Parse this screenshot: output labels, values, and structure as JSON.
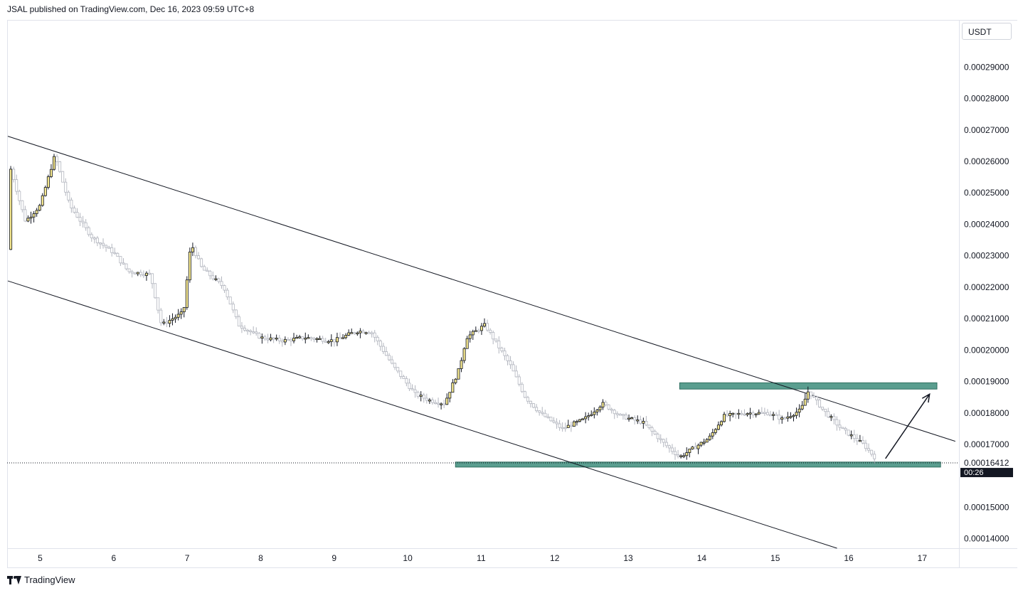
{
  "header": {
    "text": "JSAL published on TradingView.com, Dec 16, 2023 09:59 UTC+8"
  },
  "currency": "USDT",
  "footer": {
    "brand": "TradingView"
  },
  "chart_data": {
    "type": "candlestick",
    "x_ticks": [
      "5",
      "6",
      "7",
      "8",
      "9",
      "10",
      "11",
      "12",
      "13",
      "14",
      "15",
      "16",
      "17"
    ],
    "y_ticks": [
      "0.00029000",
      "0.00028000",
      "0.00027000",
      "0.00026000",
      "0.00025000",
      "0.00024000",
      "0.00023000",
      "0.00022000",
      "0.00021000",
      "0.00020000",
      "0.00019000",
      "0.00018000",
      "0.00017000",
      "0.00015000",
      "0.00014000"
    ],
    "ylim": [
      0.000137,
      0.000305
    ],
    "xlim": [
      4.55,
      17.5
    ],
    "current_price": {
      "value": "0.00016412",
      "countdown": "00:26"
    },
    "colors": {
      "up": "#f7e98f",
      "down": "#ffffff",
      "band": "#5a9e8f",
      "line": "#131722"
    },
    "close_path": [
      [
        4.56,
        0.000232
      ],
      [
        4.6,
        0.000258
      ],
      [
        4.7,
        0.000249
      ],
      [
        4.8,
        0.000241
      ],
      [
        5.0,
        0.000246
      ],
      [
        5.2,
        0.000262
      ],
      [
        5.4,
        0.000246
      ],
      [
        5.7,
        0.000236
      ],
      [
        6.0,
        0.000231
      ],
      [
        6.2,
        0.000225
      ],
      [
        6.5,
        0.000224
      ],
      [
        6.65,
        0.000208
      ],
      [
        6.95,
        0.000212
      ],
      [
        7.05,
        0.000234
      ],
      [
        7.2,
        0.000226
      ],
      [
        7.5,
        0.00022
      ],
      [
        7.7,
        0.000208
      ],
      [
        8.0,
        0.000204
      ],
      [
        8.3,
        0.000203
      ],
      [
        8.6,
        0.000204
      ],
      [
        9.0,
        0.000203
      ],
      [
        9.3,
        0.000206
      ],
      [
        9.5,
        0.000206
      ],
      [
        9.8,
        0.000195
      ],
      [
        10.1,
        0.000186
      ],
      [
        10.3,
        0.000184
      ],
      [
        10.5,
        0.000183
      ],
      [
        10.7,
        0.000194
      ],
      [
        10.8,
        0.000204
      ],
      [
        11.05,
        0.000208
      ],
      [
        11.4,
        0.000195
      ],
      [
        11.6,
        0.000185
      ],
      [
        11.8,
        0.00018
      ],
      [
        12.1,
        0.000175
      ],
      [
        12.4,
        0.000178
      ],
      [
        12.65,
        0.000183
      ],
      [
        12.9,
        0.000179
      ],
      [
        13.2,
        0.000177
      ],
      [
        13.5,
        0.00017
      ],
      [
        13.7,
        0.000166
      ],
      [
        13.9,
        0.000169
      ],
      [
        14.1,
        0.000172
      ],
      [
        14.3,
        0.000179
      ],
      [
        14.6,
        0.00018
      ],
      [
        14.9,
        0.00018
      ],
      [
        15.1,
        0.000178
      ],
      [
        15.35,
        0.000181
      ],
      [
        15.45,
        0.000187
      ],
      [
        15.65,
        0.000181
      ],
      [
        15.9,
        0.000175
      ],
      [
        16.2,
        0.00017
      ],
      [
        16.35,
        0.000166
      ]
    ],
    "channel_lines": [
      {
        "from": [
          4.56,
          0.000268
        ],
        "to": [
          17.45,
          0.000171
        ]
      },
      {
        "from": [
          4.56,
          0.000222
        ],
        "to": [
          15.84,
          0.000137
        ]
      }
    ],
    "zones": [
      {
        "x_from": 13.7,
        "x_to": 17.2,
        "y_low": 0.0001876,
        "y_high": 0.0001896
      },
      {
        "x_from": 10.65,
        "x_to": 17.25,
        "y_low": 0.0001628,
        "y_high": 0.0001644
      }
    ],
    "arrow": {
      "from": [
        16.5,
        0.0001655
      ],
      "to": [
        17.1,
        0.000186
      ]
    }
  }
}
